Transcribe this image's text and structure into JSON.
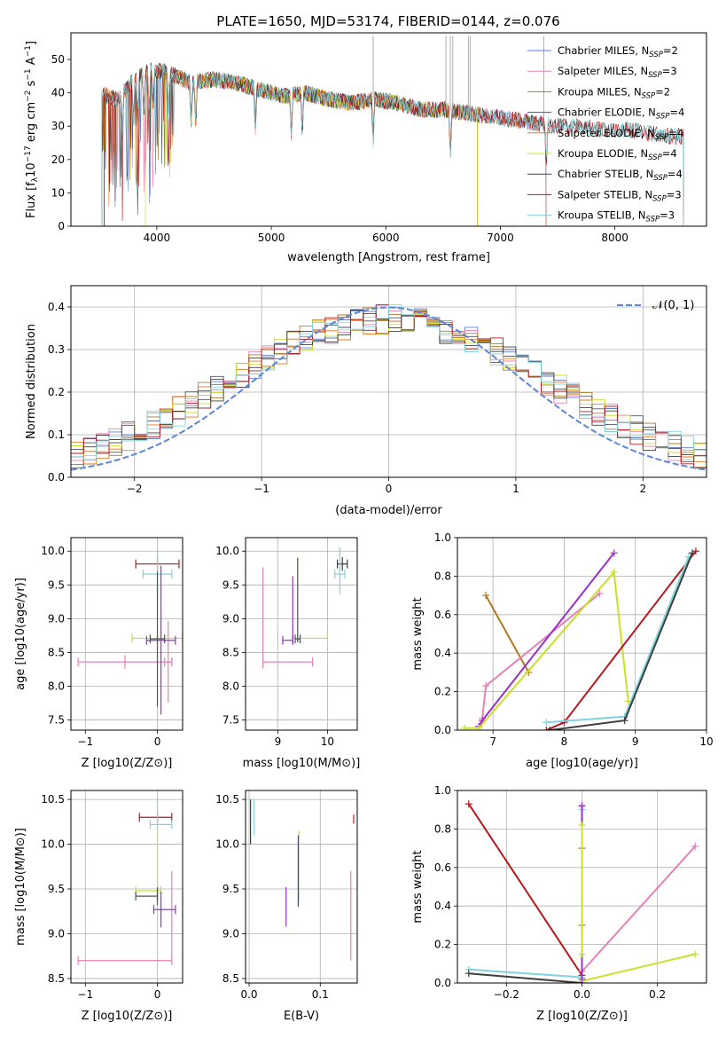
{
  "figure_title": "PLATE=1650, MJD=53174, FIBERID=0144, z=0.076",
  "colors": {
    "chabrier_miles": "#5a7fd6",
    "salpeter_miles": "#e87fb8",
    "kroupa_miles": "#b07a20",
    "chabrier_elodie": "#4a5560",
    "salpeter_elodie": "#e8761f",
    "kroupa_elodie": "#c9e02a",
    "chabrier_stelib": "#3e3e3e",
    "salpeter_stelib": "#b5191e",
    "kroupa_stelib": "#7fd3dd",
    "purple": "#9b30c8",
    "gaussian": "#5a86d6"
  },
  "chart_data": [
    {
      "id": "spectrum",
      "type": "line",
      "xlabel": "wavelength [Angstrom, rest frame]",
      "ylabel": "Flux [f_λ10^-17 erg cm^-2 s^-1 A^-1]",
      "xlim": [
        3250,
        8800
      ],
      "ylim": [
        0,
        58
      ],
      "xticks": [
        4000,
        5000,
        6000,
        7000,
        8000
      ],
      "yticks": [
        0,
        10,
        20,
        30,
        40,
        50
      ],
      "legend_position": "top-right",
      "continuum": {
        "x": [
          3500,
          3650,
          3800,
          3950,
          4100,
          4300,
          4500,
          4700,
          4900,
          5100,
          5300,
          5500,
          5700,
          5900,
          6100,
          6300,
          6500,
          6700,
          6900,
          7100,
          7300,
          7500,
          7700,
          7900,
          8100,
          8300,
          8500
        ],
        "y": [
          40,
          38,
          44,
          47,
          46,
          43,
          44,
          43,
          41,
          39,
          40,
          38,
          37,
          38,
          37,
          35,
          35,
          34,
          33,
          32,
          31,
          30,
          30,
          29,
          29,
          28,
          27
        ]
      },
      "absorption_features": [
        3700,
        3797,
        3835,
        3889,
        3933,
        3968,
        4101,
        4300,
        4340,
        4861,
        5175,
        5270,
        5890,
        6563,
        7400
      ],
      "legend": [
        {
          "label": "Chabrier MILES, N",
          "sub": "SSP",
          "tail": "=2",
          "color_key": "chabrier_miles"
        },
        {
          "label": "Salpeter MILES, N",
          "sub": "SSP",
          "tail": "=3",
          "color_key": "salpeter_miles"
        },
        {
          "label": "Kroupa MILES, N",
          "sub": "SSP",
          "tail": "=2",
          "color_key": "kroupa_miles"
        },
        {
          "label": "Chabrier ELODIE, N",
          "sub": "SSP",
          "tail": "=4",
          "color_key": "chabrier_elodie"
        },
        {
          "label": "Salpeter ELODIE, N",
          "sub": "SSP",
          "tail": "=4",
          "color_key": "salpeter_elodie"
        },
        {
          "label": "Kroupa ELODIE, N",
          "sub": "SSP",
          "tail": "=4",
          "color_key": "kroupa_elodie"
        },
        {
          "label": "Chabrier STELIB, N",
          "sub": "SSP",
          "tail": "=4",
          "color_key": "chabrier_stelib"
        },
        {
          "label": "Salpeter STELIB, N",
          "sub": "SSP",
          "tail": "=3",
          "color_key": "salpeter_stelib"
        },
        {
          "label": "Kroupa STELIB, N",
          "sub": "SSP",
          "tail": "=3",
          "color_key": "kroupa_stelib"
        }
      ]
    },
    {
      "id": "residual-histogram",
      "type": "line",
      "xlabel": "(data-model)/error",
      "ylabel": "Normed distribution",
      "xlim": [
        -2.5,
        2.5
      ],
      "ylim": [
        0,
        0.45
      ],
      "xticks": [
        -2,
        -1,
        0,
        1,
        2
      ],
      "yticks": [
        0.0,
        0.1,
        0.2,
        0.3,
        0.4
      ],
      "grid": true,
      "legend_position": "top-right",
      "legend": [
        {
          "label": "𝒩(0, 1)",
          "color_key": "gaussian"
        }
      ],
      "gaussian": {
        "mean": 0,
        "sigma": 1
      }
    },
    {
      "id": "age-vs-z",
      "type": "scatter",
      "xlabel": "Z [log10(Z/Z⊙)]",
      "ylabel": "age  [log10(age/yr)]",
      "xlim": [
        -1.2,
        0.35
      ],
      "ylim": [
        7.35,
        10.2
      ],
      "xticks": [
        -1,
        0
      ],
      "yticks": [
        7.5,
        8.0,
        8.5,
        9.0,
        9.5,
        10.0
      ],
      "grid": true,
      "errorbars": [
        {
          "x": -0.45,
          "y": 8.36,
          "xerr": [
            0.65,
            0.65
          ],
          "yerr": [
            0.1,
            0.1
          ],
          "color_key": "salpeter_miles"
        },
        {
          "x": 0.15,
          "y": 8.36,
          "xerr": [
            0.05,
            0.05
          ],
          "yerr": [
            0.6,
            0.6
          ],
          "color_key": "salpeter_miles"
        },
        {
          "x": 0.0,
          "y": 9.81,
          "xerr": [
            0.3,
            0.3
          ],
          "yerr": [
            0.1,
            0.1
          ],
          "color_key": "salpeter_stelib"
        },
        {
          "x": 0.0,
          "y": 9.66,
          "xerr": [
            0.2,
            0.2
          ],
          "yerr": [
            0.4,
            0.4
          ],
          "color_key": "kroupa_stelib"
        },
        {
          "x": 0.0,
          "y": 8.71,
          "xerr": [
            0.35,
            0.35
          ],
          "yerr": [
            0.05,
            0.05
          ],
          "color_key": "kroupa_elodie"
        },
        {
          "x": 0.05,
          "y": 8.68,
          "xerr": [
            0.2,
            0.2
          ],
          "yerr": [
            1.1,
            1.1
          ],
          "color_key": "purple"
        },
        {
          "x": 0.0,
          "y": 8.7,
          "xerr": [
            0.1,
            0.1
          ],
          "yerr": [
            1.0,
            1.0
          ],
          "color_key": "chabrier_elodie"
        }
      ]
    },
    {
      "id": "age-vs-mass",
      "type": "scatter",
      "xlabel": "mass [log10(M/M⊙)]",
      "ylabel": "",
      "xlim": [
        8.35,
        10.6
      ],
      "ylim": [
        7.35,
        10.2
      ],
      "xticks": [
        9,
        10
      ],
      "yticks": [
        7.5,
        8.0,
        8.5,
        9.0,
        9.5,
        10.0
      ],
      "grid": true,
      "errorbars": [
        {
          "x": 8.7,
          "y": 8.36,
          "xerr": [
            0.0,
            1.0
          ],
          "yerr": [
            0.1,
            1.4
          ],
          "color_key": "salpeter_miles"
        },
        {
          "x": 9.4,
          "y": 8.71,
          "xerr": [
            0.1,
            0.6
          ],
          "yerr": [
            0.05,
            1.2
          ],
          "color_key": "kroupa_elodie"
        },
        {
          "x": 9.3,
          "y": 8.68,
          "xerr": [
            0.2,
            0.0
          ],
          "yerr": [
            0.05,
            0.95
          ],
          "color_key": "purple"
        },
        {
          "x": 9.4,
          "y": 8.7,
          "xerr": [
            0.05,
            0.05
          ],
          "yerr": [
            0.05,
            1.2
          ],
          "color_key": "chabrier_elodie"
        },
        {
          "x": 10.3,
          "y": 9.81,
          "xerr": [
            0.1,
            0.1
          ],
          "yerr": [
            0.1,
            0.1
          ],
          "color_key": "chabrier_stelib"
        },
        {
          "x": 10.25,
          "y": 9.66,
          "xerr": [
            0.1,
            0.1
          ],
          "yerr": [
            0.3,
            0.4
          ],
          "color_key": "kroupa_stelib"
        }
      ]
    },
    {
      "id": "mass-weight-vs-age",
      "type": "line",
      "xlabel": "age  [log10(age/yr)]",
      "ylabel": "mass weight",
      "xlim": [
        6.5,
        10.0
      ],
      "ylim": [
        0.0,
        1.0
      ],
      "xticks": [
        7,
        8,
        9,
        10
      ],
      "yticks": [
        0.0,
        0.2,
        0.4,
        0.6,
        0.8,
        1.0
      ],
      "grid": true,
      "series": [
        {
          "color_key": "kroupa_miles",
          "x": [
            6.9,
            7.5
          ],
          "y": [
            0.7,
            0.3
          ]
        },
        {
          "color_key": "salpeter_miles",
          "x": [
            6.85,
            6.9,
            8.5
          ],
          "y": [
            0.06,
            0.23,
            0.71
          ]
        },
        {
          "color_key": "purple",
          "x": [
            6.8,
            6.85,
            8.7
          ],
          "y": [
            0.02,
            0.05,
            0.92
          ]
        },
        {
          "color_key": "kroupa_elodie",
          "x": [
            6.6,
            6.8,
            8.7,
            8.9
          ],
          "y": [
            0.01,
            0.01,
            0.82,
            0.15
          ]
        },
        {
          "color_key": "salpeter_stelib",
          "x": [
            7.75,
            8.0,
            9.85
          ],
          "y": [
            0.0,
            0.04,
            0.93
          ]
        },
        {
          "color_key": "kroupa_stelib",
          "x": [
            7.75,
            8.85,
            9.75
          ],
          "y": [
            0.04,
            0.07,
            0.9
          ]
        },
        {
          "color_key": "chabrier_stelib",
          "x": [
            7.8,
            8.85,
            9.8
          ],
          "y": [
            0.0,
            0.05,
            0.92
          ]
        }
      ]
    },
    {
      "id": "mass-vs-z",
      "type": "scatter",
      "xlabel": "Z [log10(Z/Z⊙)]",
      "ylabel": "mass [log10(M/M⊙)]",
      "xlim": [
        -1.2,
        0.35
      ],
      "ylim": [
        8.45,
        10.6
      ],
      "xticks": [
        -1,
        0
      ],
      "yticks": [
        8.5,
        9.0,
        9.5,
        10.0,
        10.5
      ],
      "grid": true,
      "errorbars": [
        {
          "x": -0.45,
          "y": 8.7,
          "xerr": [
            0.65,
            0.65
          ],
          "yerr": [
            0.0,
            0.0
          ],
          "color_key": "salpeter_miles"
        },
        {
          "x": 0.2,
          "y": 8.7,
          "xerr": [
            0.0,
            0.0
          ],
          "yerr": [
            0.0,
            1.0
          ],
          "color_key": "salpeter_miles"
        },
        {
          "x": 0.0,
          "y": 10.3,
          "xerr": [
            0.25,
            0.2
          ],
          "yerr": [
            0.05,
            0.05
          ],
          "color_key": "salpeter_stelib"
        },
        {
          "x": 0.0,
          "y": 10.22,
          "xerr": [
            0.1,
            0.2
          ],
          "yerr": [
            0.1,
            0.3
          ],
          "color_key": "kroupa_stelib"
        },
        {
          "x": 0.0,
          "y": 9.48,
          "xerr": [
            0.3,
            0.05
          ],
          "yerr": [
            0.1,
            0.7
          ],
          "color_key": "kroupa_elodie"
        },
        {
          "x": 0.05,
          "y": 9.27,
          "xerr": [
            0.1,
            0.2
          ],
          "yerr": [
            0.2,
            0.2
          ],
          "color_key": "purple"
        },
        {
          "x": 0.0,
          "y": 9.42,
          "xerr": [
            0.3,
            0.0
          ],
          "yerr": [
            0.1,
            0.1
          ],
          "color_key": "chabrier_elodie"
        }
      ]
    },
    {
      "id": "mass-vs-ebv",
      "type": "scatter",
      "xlabel": "E(B-V)",
      "ylabel": "",
      "xlim": [
        -0.005,
        0.152
      ],
      "ylim": [
        8.45,
        10.6
      ],
      "xticks": [
        0.0,
        0.1
      ],
      "yticks": [
        8.5,
        9.0,
        9.5,
        10.0,
        10.5
      ],
      "grid": true,
      "errorbars": [
        {
          "x": 0.002,
          "y": 10.25,
          "xerr": [
            0,
            0
          ],
          "yerr": [
            0.25,
            0.25
          ],
          "color_key": "chabrier_stelib"
        },
        {
          "x": 0.007,
          "y": 10.3,
          "xerr": [
            0,
            0
          ],
          "yerr": [
            0.2,
            0.2
          ],
          "color_key": "kroupa_stelib"
        },
        {
          "x": 0.07,
          "y": 9.75,
          "xerr": [
            0,
            0
          ],
          "yerr": [
            0.4,
            0.4
          ],
          "color_key": "kroupa_elodie"
        },
        {
          "x": 0.069,
          "y": 9.7,
          "xerr": [
            0,
            0
          ],
          "yerr": [
            0.4,
            0.4
          ],
          "color_key": "chabrier_elodie"
        },
        {
          "x": 0.052,
          "y": 9.3,
          "xerr": [
            0,
            0
          ],
          "yerr": [
            0.22,
            0.22
          ],
          "color_key": "purple"
        },
        {
          "x": 0.143,
          "y": 9.2,
          "xerr": [
            0,
            0
          ],
          "yerr": [
            0.5,
            0.5
          ],
          "color_key": "salpeter_miles"
        },
        {
          "x": 0.147,
          "y": 10.28,
          "xerr": [
            0,
            0
          ],
          "yerr": [
            0.05,
            0.05
          ],
          "color_key": "salpeter_stelib"
        }
      ]
    },
    {
      "id": "mass-weight-vs-z",
      "type": "line",
      "xlabel": "Z [log10(Z/Z⊙)]",
      "ylabel": "mass weight",
      "xlim": [
        -0.33,
        0.33
      ],
      "ylim": [
        0.0,
        1.0
      ],
      "xticks": [
        -0.2,
        0.0,
        0.2
      ],
      "yticks": [
        0.0,
        0.2,
        0.4,
        0.6,
        0.8,
        1.0
      ],
      "grid": true,
      "series": [
        {
          "color_key": "salpeter_stelib",
          "x": [
            -0.3,
            0.0,
            0.0
          ],
          "y": [
            0.93,
            0.04,
            0.0
          ]
        },
        {
          "color_key": "kroupa_stelib",
          "x": [
            -0.3,
            0.0,
            0.0
          ],
          "y": [
            0.07,
            0.03,
            0.9
          ]
        },
        {
          "color_key": "chabrier_stelib",
          "x": [
            -0.3,
            0.0,
            0.0
          ],
          "y": [
            0.05,
            0.0,
            0.92
          ]
        },
        {
          "color_key": "salpeter_miles",
          "x": [
            0.0,
            0.3
          ],
          "y": [
            0.06,
            0.71
          ]
        },
        {
          "color_key": "kroupa_elodie",
          "x": [
            0.0,
            0.3
          ],
          "y": [
            0.01,
            0.15
          ]
        },
        {
          "color_key": "purple",
          "x": [
            0.0,
            0.0
          ],
          "y": [
            0.02,
            0.92
          ]
        },
        {
          "color_key": "kroupa_miles",
          "x": [
            0.0,
            0.0
          ],
          "y": [
            0.3,
            0.7
          ]
        },
        {
          "color_key": "kroupa_elodie",
          "x": [
            0.0,
            0.0
          ],
          "y": [
            0.82,
            0.15
          ]
        }
      ]
    }
  ]
}
